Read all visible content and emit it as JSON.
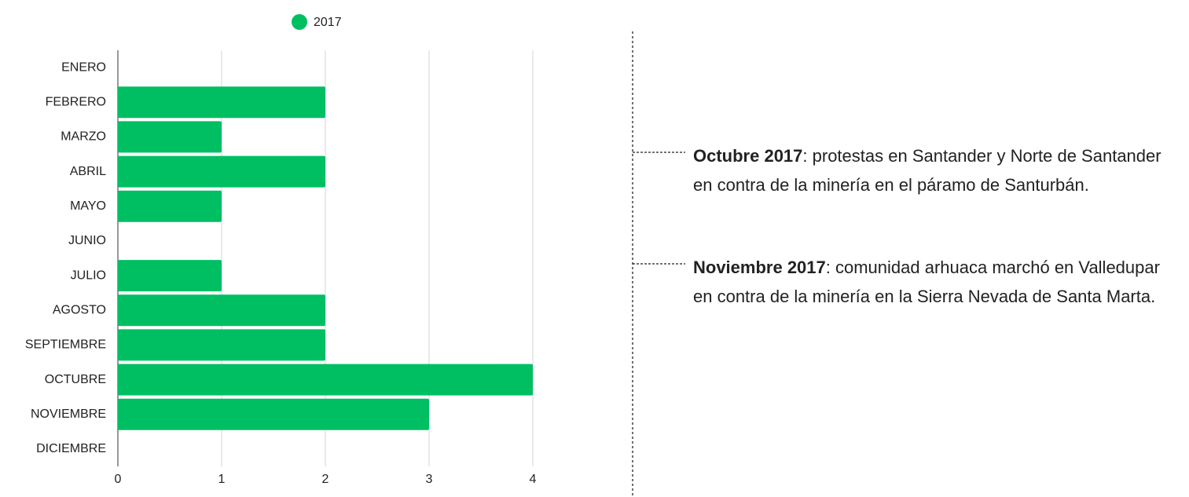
{
  "chart_data": {
    "type": "bar",
    "orientation": "horizontal",
    "categories": [
      "ENERO",
      "FEBRERO",
      "MARZO",
      "ABRIL",
      "MAYO",
      "JUNIO",
      "JULIO",
      "AGOSTO",
      "SEPTIEMBRE",
      "OCTUBRE",
      "NOVIEMBRE",
      "DICIEMBRE"
    ],
    "series": [
      {
        "name": "2017",
        "color": "#00bf63",
        "values": [
          0,
          2,
          1,
          2,
          1,
          0,
          1,
          2,
          2,
          4,
          3,
          0
        ]
      }
    ],
    "xlim": [
      0,
      4
    ],
    "xticks": [
      0,
      1,
      2,
      3,
      4
    ],
    "grid": true,
    "legend": "top",
    "annotations": [
      {
        "bold": "Octubre 2017",
        "text": ": protestas en Santander y Norte de Santander en contra de la minería en el páramo de Santurbán."
      },
      {
        "bold": "Noviembre 2017",
        "text": ": comunidad arhuaca marchó en Valledupar en contra de la minería en la Sierra Nevada de Santa Marta."
      }
    ]
  }
}
